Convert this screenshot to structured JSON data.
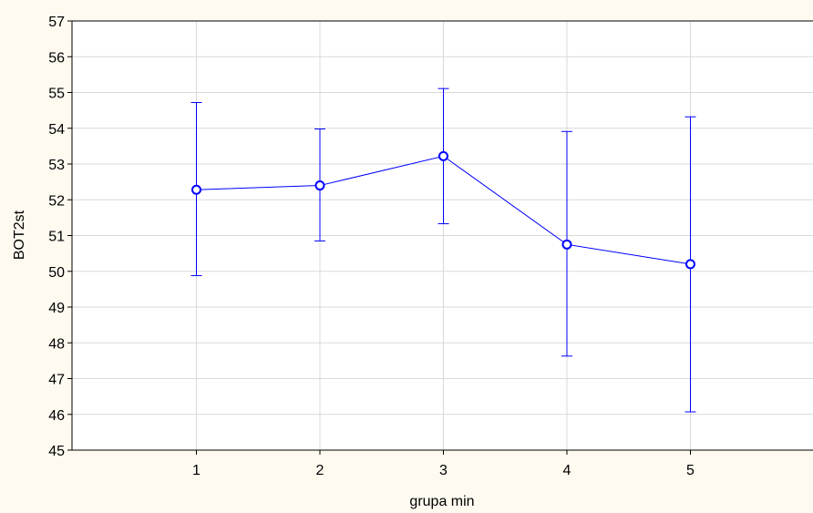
{
  "chart_data": {
    "type": "line",
    "xlabel": "grupa min",
    "ylabel": "BOT2st",
    "ylim": [
      45,
      57
    ],
    "xlim": [
      0,
      6
    ],
    "yticks": [
      "45",
      "46",
      "47",
      "48",
      "49",
      "50",
      "51",
      "52",
      "53",
      "54",
      "55",
      "56",
      "57"
    ],
    "xticks": [
      "1",
      "2",
      "3",
      "4",
      "5"
    ],
    "grid": true,
    "series": [
      {
        "x": [
          1,
          2,
          3,
          4,
          5
        ],
        "values": [
          52.28,
          52.4,
          53.22,
          50.75,
          50.2
        ],
        "ci_low": [
          49.88,
          50.85,
          51.33,
          47.63,
          46.07
        ],
        "ci_high": [
          54.72,
          53.98,
          55.11,
          53.91,
          54.32
        ],
        "color": "#0000ff"
      }
    ]
  }
}
